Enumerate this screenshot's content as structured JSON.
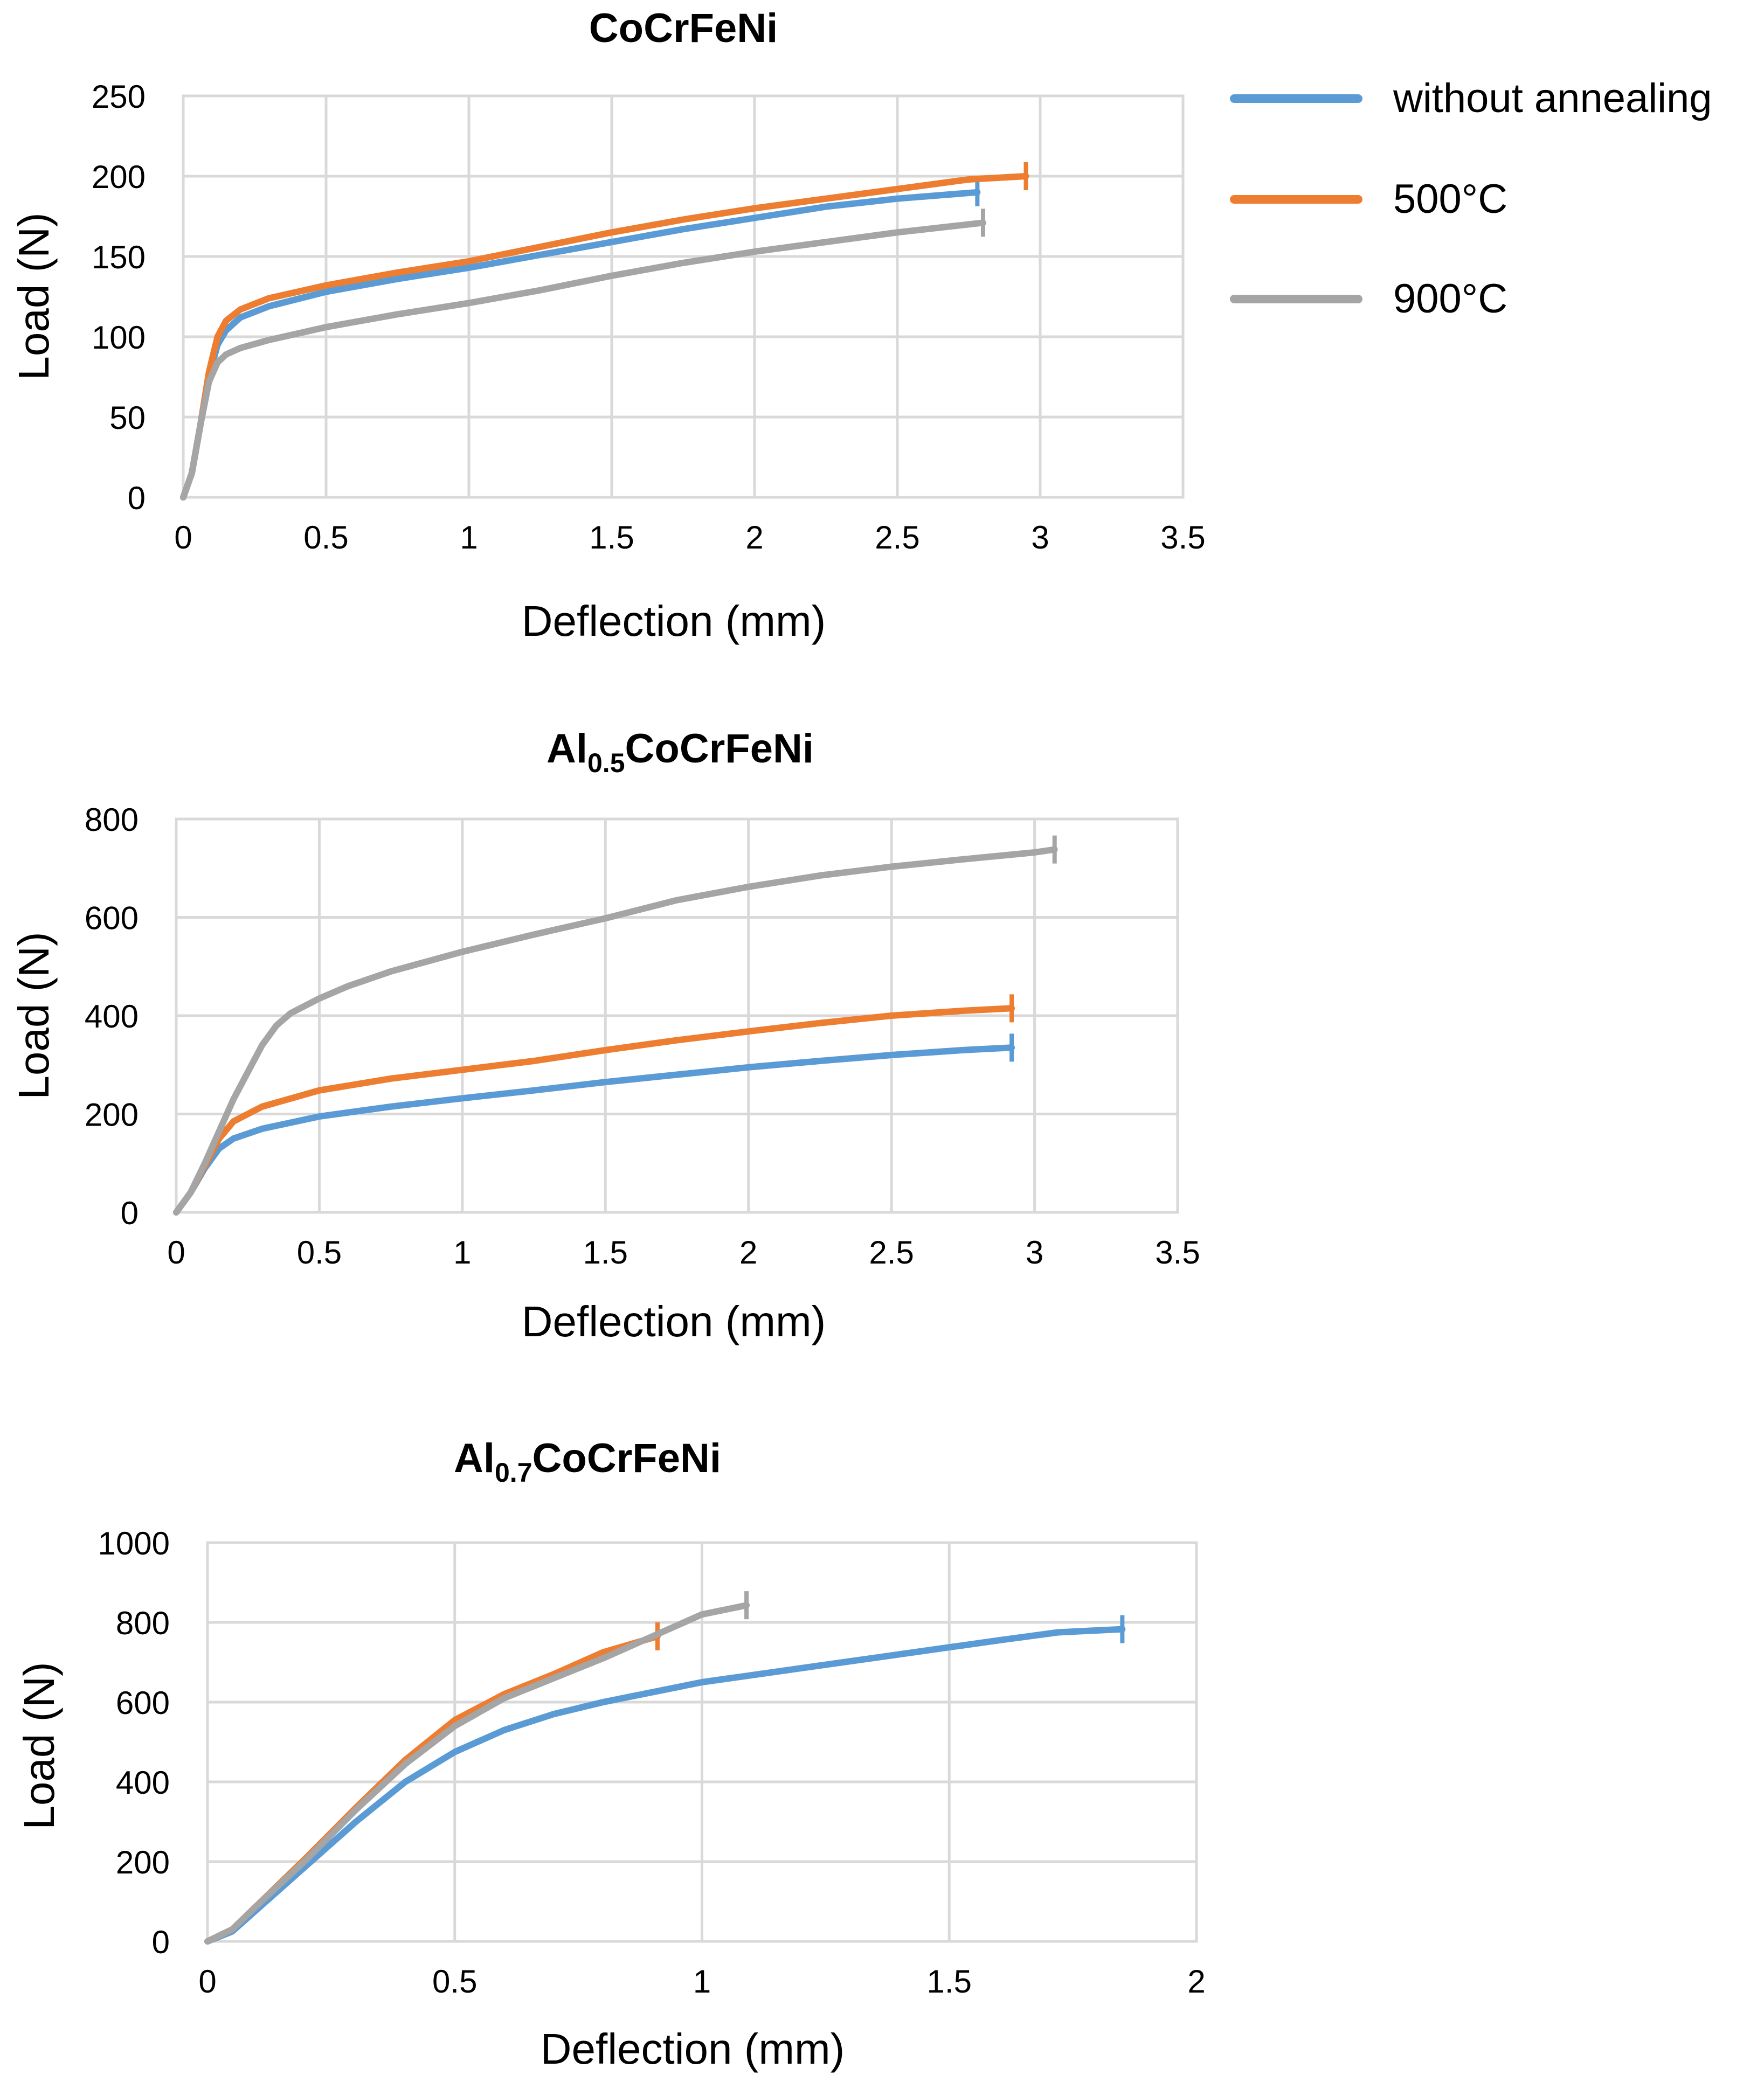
{
  "colors": {
    "without_annealing": "#5b9bd5",
    "c500": "#ed7d31",
    "c900": "#a5a5a5",
    "grid": "#d9d9d9"
  },
  "legend": {
    "placement": "top-right",
    "entries": [
      {
        "name": "without annealing",
        "color": "#5b9bd5"
      },
      {
        "name": "500°C",
        "color": "#ed7d31"
      },
      {
        "name": "900°C",
        "color": "#a5a5a5"
      }
    ]
  },
  "chart_data": [
    {
      "type": "line",
      "title": "CoCrFeNi",
      "title_main": "CoCrFeNi",
      "title_sub": "",
      "title_rest": "",
      "xlabel": "Deflection (mm)",
      "ylabel": "Load (N)",
      "xlim": [
        0,
        3.5
      ],
      "ylim": [
        0,
        250
      ],
      "xticks": [
        0,
        0.5,
        1,
        1.5,
        2,
        2.5,
        3,
        3.5
      ],
      "xtick_labels": [
        "0",
        "0.5",
        "1",
        "1.5",
        "2",
        "2.5",
        "3",
        "3.5"
      ],
      "yticks": [
        0,
        50,
        100,
        150,
        200,
        250
      ],
      "ytick_labels": [
        "0",
        "50",
        "100",
        "150",
        "200",
        "250"
      ],
      "series": [
        {
          "name": "without annealing",
          "color": "#5b9bd5",
          "x": [
            0,
            0.03,
            0.06,
            0.09,
            0.12,
            0.15,
            0.2,
            0.3,
            0.5,
            0.75,
            1.0,
            1.25,
            1.5,
            1.75,
            2.0,
            2.25,
            2.5,
            2.78
          ],
          "y": [
            0,
            15,
            45,
            75,
            95,
            104,
            112,
            119,
            128,
            136,
            143,
            151,
            159,
            167,
            174,
            181,
            186,
            190
          ]
        },
        {
          "name": "500°C",
          "color": "#ed7d31",
          "x": [
            0,
            0.03,
            0.06,
            0.09,
            0.12,
            0.15,
            0.2,
            0.3,
            0.5,
            0.75,
            1.0,
            1.25,
            1.5,
            1.75,
            2.0,
            2.25,
            2.5,
            2.75,
            2.95
          ],
          "y": [
            0,
            15,
            45,
            78,
            100,
            110,
            117,
            124,
            132,
            140,
            147,
            156,
            165,
            173,
            180,
            186,
            192,
            198,
            200
          ]
        },
        {
          "name": "900°C",
          "color": "#a5a5a5",
          "x": [
            0,
            0.03,
            0.06,
            0.09,
            0.12,
            0.15,
            0.2,
            0.3,
            0.5,
            0.75,
            1.0,
            1.25,
            1.5,
            1.75,
            2.0,
            2.25,
            2.5,
            2.8
          ],
          "y": [
            0,
            15,
            45,
            72,
            84,
            89,
            93,
            98,
            106,
            114,
            121,
            129,
            138,
            146,
            153,
            159,
            165,
            171
          ]
        }
      ]
    },
    {
      "type": "line",
      "title": "Al0.5CoCrFeNi",
      "title_main": "Al",
      "title_sub": "0.5",
      "title_rest": "CoCrFeNi",
      "xlabel": "Deflection (mm)",
      "ylabel": "Load (N)",
      "xlim": [
        0,
        3.5
      ],
      "ylim": [
        0,
        800
      ],
      "xticks": [
        0,
        0.5,
        1,
        1.5,
        2,
        2.5,
        3,
        3.5
      ],
      "xtick_labels": [
        "0",
        "0.5",
        "1",
        "1.5",
        "2",
        "2.5",
        "3",
        "3.5"
      ],
      "yticks": [
        0,
        200,
        400,
        600,
        800
      ],
      "ytick_labels": [
        "0",
        "200",
        "400",
        "600",
        "800"
      ],
      "series": [
        {
          "name": "without annealing",
          "color": "#5b9bd5",
          "x": [
            0,
            0.05,
            0.1,
            0.15,
            0.2,
            0.3,
            0.5,
            0.75,
            1.0,
            1.25,
            1.5,
            1.75,
            2.0,
            2.25,
            2.5,
            2.75,
            2.92
          ],
          "y": [
            0,
            40,
            90,
            130,
            150,
            170,
            195,
            215,
            232,
            248,
            265,
            280,
            295,
            308,
            320,
            330,
            335
          ]
        },
        {
          "name": "500°C",
          "color": "#ed7d31",
          "x": [
            0,
            0.05,
            0.1,
            0.15,
            0.2,
            0.3,
            0.5,
            0.75,
            1.0,
            1.25,
            1.5,
            1.75,
            2.0,
            2.25,
            2.5,
            2.75,
            2.92
          ],
          "y": [
            0,
            40,
            95,
            150,
            185,
            215,
            248,
            272,
            290,
            308,
            330,
            350,
            368,
            385,
            400,
            410,
            415
          ]
        },
        {
          "name": "900°C",
          "color": "#a5a5a5",
          "x": [
            0,
            0.05,
            0.1,
            0.15,
            0.2,
            0.25,
            0.3,
            0.35,
            0.4,
            0.5,
            0.6,
            0.75,
            1.0,
            1.25,
            1.5,
            1.75,
            2.0,
            2.25,
            2.5,
            2.75,
            3.0,
            3.07
          ],
          "y": [
            0,
            40,
            100,
            165,
            230,
            285,
            340,
            380,
            405,
            435,
            460,
            490,
            530,
            565,
            598,
            635,
            662,
            685,
            703,
            718,
            732,
            738
          ]
        }
      ]
    },
    {
      "type": "line",
      "title": "Al0.7CoCrFeNi",
      "title_main": "Al",
      "title_sub": "0.7",
      "title_rest": "CoCrFeNi",
      "xlabel": "Deflection (mm)",
      "ylabel": "Load (N)",
      "xlim": [
        0,
        2
      ],
      "ylim": [
        0,
        1000
      ],
      "xticks": [
        0,
        0.5,
        1,
        1.5,
        2
      ],
      "xtick_labels": [
        "0",
        "0.5",
        "1",
        "1.5",
        "2"
      ],
      "yticks": [
        0,
        200,
        400,
        600,
        800,
        1000
      ],
      "ytick_labels": [
        "0",
        "200",
        "400",
        "600",
        "800",
        "1000"
      ],
      "series": [
        {
          "name": "without annealing",
          "color": "#5b9bd5",
          "x": [
            0,
            0.05,
            0.1,
            0.2,
            0.3,
            0.4,
            0.5,
            0.6,
            0.7,
            0.8,
            0.9,
            1.0,
            1.2,
            1.4,
            1.6,
            1.72,
            1.85
          ],
          "y": [
            0,
            25,
            80,
            190,
            300,
            400,
            475,
            530,
            570,
            600,
            625,
            650,
            685,
            720,
            755,
            775,
            783
          ]
        },
        {
          "name": "500°C",
          "color": "#ed7d31",
          "x": [
            0,
            0.05,
            0.1,
            0.2,
            0.3,
            0.4,
            0.5,
            0.6,
            0.7,
            0.8,
            0.91
          ],
          "y": [
            0,
            30,
            90,
            210,
            335,
            455,
            555,
            620,
            670,
            725,
            765
          ]
        },
        {
          "name": "900°C",
          "color": "#a5a5a5",
          "x": [
            0,
            0.05,
            0.1,
            0.2,
            0.3,
            0.4,
            0.5,
            0.6,
            0.7,
            0.8,
            0.9,
            1.0,
            1.09
          ],
          "y": [
            0,
            30,
            90,
            205,
            330,
            445,
            540,
            610,
            660,
            710,
            765,
            820,
            843
          ]
        }
      ]
    }
  ]
}
